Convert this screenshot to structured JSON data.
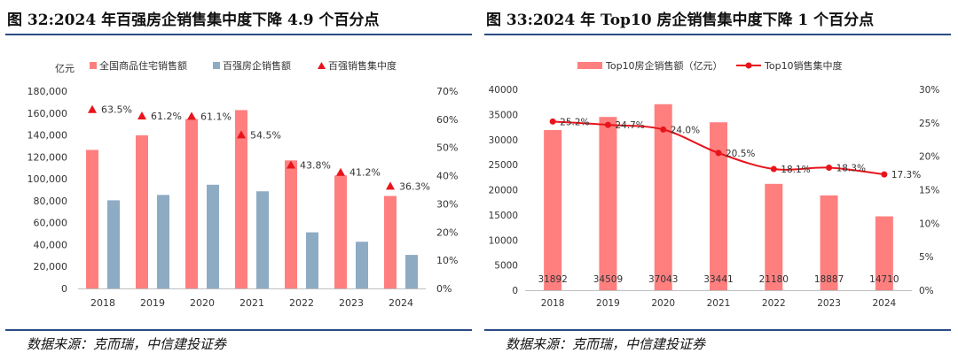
{
  "panels": [
    {
      "title": "图 32:2024 年百强房企销售集中度下降 4.9 个百分点",
      "source": "数据来源：克而瑞，中信建投证券"
    },
    {
      "title": "图 33:2024 年 Top10 房企销售集中度下降 1 个百分点",
      "source": "数据来源：克而瑞，中信建投证券"
    }
  ],
  "colors": {
    "salmon": "#ff7f7f",
    "steel": "#8eabc4",
    "red": "#e8141b",
    "line": "#2b4b83"
  },
  "chart_data": [
    {
      "type": "bar",
      "unit_label": "亿元",
      "categories": [
        "2018",
        "2019",
        "2020",
        "2021",
        "2022",
        "2023",
        "2024"
      ],
      "series": [
        {
          "name": "全国商品住宅销售额",
          "axis": "left",
          "style": "bar",
          "values": [
            126400,
            139700,
            154600,
            162700,
            116800,
            103100,
            84400
          ]
        },
        {
          "name": "百强房企销售额",
          "axis": "left",
          "style": "bar",
          "values": [
            80400,
            85300,
            94600,
            88600,
            51200,
            42600,
            30600
          ]
        },
        {
          "name": "百强销售集中度",
          "axis": "right",
          "style": "marker",
          "values": [
            63.5,
            61.2,
            61.1,
            54.5,
            43.8,
            41.2,
            36.3
          ],
          "labels": [
            "63.5%",
            "61.2%",
            "61.1%",
            "54.5%",
            "43.8%",
            "41.2%",
            "36.3%"
          ]
        }
      ],
      "ylim": [
        0,
        180000
      ],
      "yticks": [
        "0",
        "20,000",
        "40,000",
        "60,000",
        "80,000",
        "100,000",
        "120,000",
        "140,000",
        "160,000",
        "180,000"
      ],
      "y2lim": [
        0,
        70
      ],
      "y2ticks": [
        "0%",
        "10%",
        "20%",
        "30%",
        "40%",
        "50%",
        "60%",
        "70%"
      ],
      "legend": "top"
    },
    {
      "type": "bar",
      "categories": [
        "2018",
        "2019",
        "2020",
        "2021",
        "2022",
        "2023",
        "2024"
      ],
      "series": [
        {
          "name": "Top10房企销售额（亿元）",
          "axis": "left",
          "style": "bar",
          "values": [
            31892,
            34509,
            37043,
            33441,
            21180,
            18887,
            14710
          ],
          "labels": [
            "31892",
            "34509",
            "37043",
            "33441",
            "21180",
            "18887",
            "14710"
          ]
        },
        {
          "name": "Top10销售集中度",
          "axis": "right",
          "style": "line",
          "values": [
            25.2,
            24.7,
            24.0,
            20.5,
            18.1,
            18.3,
            17.3
          ],
          "labels": [
            "25.2%",
            "24.7%",
            "24.0%",
            "20.5%",
            "18.1%",
            "18.3%",
            "17.3%"
          ]
        }
      ],
      "ylim": [
        0,
        40000
      ],
      "yticks": [
        "0",
        "5000",
        "10000",
        "15000",
        "20000",
        "25000",
        "30000",
        "35000",
        "40000"
      ],
      "y2lim": [
        0,
        30
      ],
      "y2ticks": [
        "0%",
        "5%",
        "10%",
        "15%",
        "20%",
        "25%",
        "30%"
      ],
      "legend": "top"
    }
  ]
}
